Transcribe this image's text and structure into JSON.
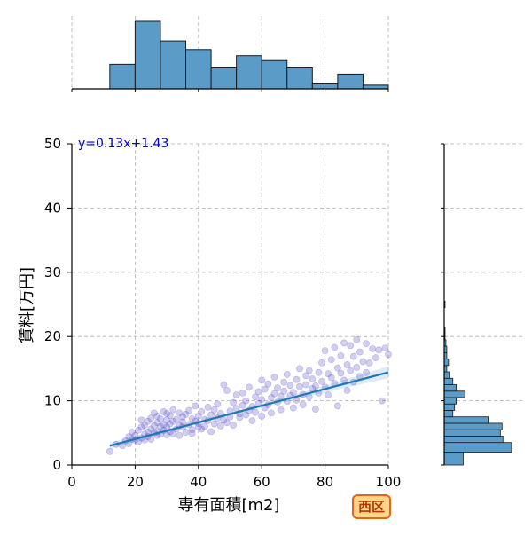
{
  "chart_data": {
    "type": "scatter",
    "title": "",
    "xlabel": "専有面積[m2]",
    "ylabel": "賃料[万円]",
    "xlim": [
      0,
      100
    ],
    "ylim": [
      0,
      50
    ],
    "xticks": [
      0,
      20,
      40,
      60,
      80,
      100
    ],
    "yticks": [
      0,
      10,
      20,
      30,
      40,
      50
    ],
    "grid": true,
    "colors": {
      "points": "#5b4fc9",
      "regression": "#1f77b4",
      "histogram": "#5b9bc8",
      "annotation": "#0000cc"
    },
    "regression": {
      "slope": 0.13,
      "intercept": 1.43,
      "x_range": [
        12,
        100
      ],
      "label": "y=0.13x+1.43"
    },
    "points": [
      [
        12,
        2.1
      ],
      [
        14,
        3.2
      ],
      [
        16,
        3.0
      ],
      [
        17,
        3.8
      ],
      [
        18,
        4.4
      ],
      [
        18,
        3.3
      ],
      [
        19,
        4.0
      ],
      [
        19,
        5.1
      ],
      [
        20,
        3.9
      ],
      [
        20,
        4.6
      ],
      [
        21,
        5.4
      ],
      [
        21,
        3.6
      ],
      [
        22,
        4.2
      ],
      [
        22,
        5.9
      ],
      [
        22,
        7.0
      ],
      [
        23,
        4.8
      ],
      [
        23,
        6.2
      ],
      [
        23,
        3.9
      ],
      [
        24,
        5.1
      ],
      [
        24,
        6.8
      ],
      [
        24,
        4.4
      ],
      [
        25,
        5.6
      ],
      [
        25,
        7.3
      ],
      [
        25,
        4.0
      ],
      [
        26,
        5.0
      ],
      [
        26,
        6.1
      ],
      [
        26,
        8.1
      ],
      [
        27,
        4.6
      ],
      [
        27,
        6.6
      ],
      [
        27,
        7.6
      ],
      [
        27,
        5.2
      ],
      [
        28,
        4.8
      ],
      [
        28,
        6.0
      ],
      [
        28,
        7.2
      ],
      [
        29,
        5.4
      ],
      [
        29,
        8.3
      ],
      [
        29,
        6.3
      ],
      [
        30,
        4.7
      ],
      [
        30,
        5.9
      ],
      [
        30,
        7.0
      ],
      [
        30,
        8.0
      ],
      [
        31,
        6.4
      ],
      [
        31,
        5.2
      ],
      [
        31,
        7.7
      ],
      [
        32,
        4.9
      ],
      [
        32,
        6.8
      ],
      [
        32,
        8.6
      ],
      [
        33,
        5.6
      ],
      [
        33,
        7.1
      ],
      [
        34,
        6.2
      ],
      [
        34,
        4.6
      ],
      [
        34,
        8.1
      ],
      [
        35,
        5.9
      ],
      [
        35,
        7.5
      ],
      [
        35,
        6.7
      ],
      [
        36,
        5.1
      ],
      [
        36,
        7.9
      ],
      [
        37,
        6.3
      ],
      [
        37,
        8.5
      ],
      [
        38,
        5.5
      ],
      [
        38,
        7.2
      ],
      [
        38,
        4.9
      ],
      [
        39,
        6.8
      ],
      [
        39,
        9.2
      ],
      [
        40,
        5.9
      ],
      [
        40,
        7.6
      ],
      [
        40,
        6.5
      ],
      [
        41,
        8.3
      ],
      [
        41,
        5.6
      ],
      [
        42,
        7.1
      ],
      [
        42,
        6.0
      ],
      [
        43,
        9.0
      ],
      [
        43,
        6.9
      ],
      [
        44,
        5.2
      ],
      [
        44,
        7.8
      ],
      [
        45,
        8.6
      ],
      [
        45,
        6.4
      ],
      [
        46,
        7.3
      ],
      [
        46,
        9.5
      ],
      [
        47,
        6.1
      ],
      [
        47,
        8.0
      ],
      [
        48,
        7.0
      ],
      [
        48,
        12.5
      ],
      [
        49,
        11.6
      ],
      [
        49,
        6.6
      ],
      [
        50,
        8.4
      ],
      [
        50,
        7.5
      ],
      [
        51,
        9.7
      ],
      [
        51,
        6.2
      ],
      [
        52,
        8.8
      ],
      [
        52,
        10.9
      ],
      [
        53,
        7.4
      ],
      [
        53,
        8.0
      ],
      [
        54,
        9.3
      ],
      [
        54,
        11.2
      ],
      [
        55,
        7.8
      ],
      [
        55,
        10.0
      ],
      [
        56,
        8.5
      ],
      [
        56,
        12.1
      ],
      [
        57,
        9.1
      ],
      [
        57,
        6.9
      ],
      [
        58,
        10.6
      ],
      [
        58,
        8.2
      ],
      [
        59,
        11.4
      ],
      [
        59,
        9.6
      ],
      [
        60,
        13.2
      ],
      [
        60,
        7.6
      ],
      [
        60,
        10.2
      ],
      [
        61,
        8.9
      ],
      [
        61,
        11.8
      ],
      [
        62,
        9.4
      ],
      [
        62,
        12.6
      ],
      [
        63,
        10.5
      ],
      [
        63,
        8.1
      ],
      [
        64,
        11.1
      ],
      [
        64,
        13.7
      ],
      [
        65,
        9.8
      ],
      [
        65,
        12.0
      ],
      [
        66,
        10.7
      ],
      [
        66,
        8.6
      ],
      [
        67,
        12.9
      ],
      [
        67,
        11.5
      ],
      [
        68,
        9.9
      ],
      [
        68,
        14.1
      ],
      [
        69,
        10.8
      ],
      [
        69,
        12.4
      ],
      [
        70,
        11.3
      ],
      [
        70,
        8.9
      ],
      [
        71,
        13.3
      ],
      [
        71,
        10.1
      ],
      [
        72,
        12.2
      ],
      [
        72,
        15.0
      ],
      [
        73,
        11.0
      ],
      [
        73,
        9.4
      ],
      [
        74,
        13.9
      ],
      [
        74,
        12.5
      ],
      [
        75,
        10.6
      ],
      [
        75,
        14.7
      ],
      [
        76,
        11.9
      ],
      [
        76,
        13.4
      ],
      [
        77,
        12.3
      ],
      [
        77,
        8.7
      ],
      [
        78,
        14.4
      ],
      [
        78,
        11.2
      ],
      [
        79,
        15.9
      ],
      [
        79,
        13.0
      ],
      [
        80,
        12.1
      ],
      [
        80,
        17.8
      ],
      [
        81,
        14.2
      ],
      [
        81,
        10.9
      ],
      [
        82,
        16.4
      ],
      [
        82,
        13.6
      ],
      [
        83,
        12.7
      ],
      [
        83,
        18.3
      ],
      [
        84,
        15.1
      ],
      [
        84,
        9.2
      ],
      [
        85,
        14.3
      ],
      [
        85,
        17.0
      ],
      [
        86,
        13.2
      ],
      [
        86,
        19.0
      ],
      [
        87,
        15.6
      ],
      [
        87,
        11.6
      ],
      [
        88,
        18.6
      ],
      [
        88,
        14.7
      ],
      [
        89,
        12.9
      ],
      [
        89,
        16.9
      ],
      [
        90,
        19.5
      ],
      [
        90,
        15.2
      ],
      [
        91,
        13.8
      ],
      [
        91,
        17.6
      ],
      [
        92,
        16.1
      ],
      [
        93,
        18.9
      ],
      [
        93,
        14.4
      ],
      [
        94,
        15.9
      ],
      [
        95,
        18.1
      ],
      [
        96,
        16.7
      ],
      [
        97,
        17.9
      ],
      [
        98,
        10.0
      ],
      [
        99,
        18.2
      ],
      [
        100,
        17.2
      ]
    ],
    "x_histogram": {
      "bin_edges": [
        12,
        20,
        28,
        36,
        44,
        52,
        60,
        68,
        76,
        84,
        92,
        100
      ],
      "counts": [
        20,
        55,
        39,
        32,
        17,
        27,
        23,
        17,
        4,
        12,
        3
      ]
    },
    "y_histogram": {
      "bin_edges": [
        0,
        2,
        3.5,
        4.5,
        5.5,
        6.5,
        7.5,
        8.5,
        9.5,
        10.5,
        11.5,
        12.5,
        13.5,
        14.5,
        15.5,
        16.5,
        17.5,
        18.5,
        19.5,
        20.5,
        21.5,
        22.5,
        23.5,
        24.5,
        25.5
      ],
      "counts": [
        22,
        78,
        68,
        65,
        67,
        51,
        10,
        12,
        14,
        24,
        14,
        10,
        6,
        3,
        5,
        3,
        3,
        2,
        1,
        1,
        0,
        0,
        0,
        1
      ]
    }
  },
  "badge": {
    "label": "西区",
    "border_color": "#e8641a",
    "fill_color": "#ffd58a",
    "text_color": "#b03a00"
  }
}
